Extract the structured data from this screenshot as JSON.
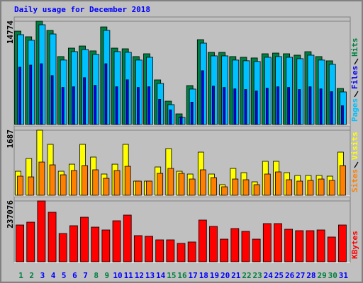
{
  "chart_data": [
    {
      "type": "bar",
      "title": "Daily usage for December 2018",
      "series": [
        {
          "name": "Hits",
          "color": "#008040",
          "values": [
            13360,
            12550,
            14774,
            13460,
            9720,
            10930,
            11230,
            10530,
            13960,
            10930,
            10830,
            9720,
            10120,
            6380,
            3340,
            1520,
            5570,
            12140,
            10320,
            10320,
            9720,
            9620,
            9520,
            10120,
            10220,
            10120,
            9920,
            10420,
            9720,
            9110,
            5160
          ]
        },
        {
          "name": "Files",
          "color": "#0000ff",
          "values": [
            8200,
            8500,
            8700,
            7000,
            5300,
            5400,
            6700,
            5600,
            8700,
            5400,
            6400,
            5300,
            5400,
            3600,
            2100,
            1100,
            3200,
            7700,
            5500,
            5300,
            5100,
            5000,
            4800,
            5200,
            5400,
            5300,
            5000,
            5400,
            5100,
            4700,
            2700
          ]
        },
        {
          "name": "Pages",
          "color": "#00c0ff",
          "values": [
            12850,
            12050,
            14270,
            12950,
            9220,
            10430,
            10730,
            10030,
            13460,
            10430,
            10330,
            9220,
            9620,
            5880,
            2840,
            1020,
            5070,
            11640,
            9820,
            9820,
            9220,
            9120,
            9020,
            9620,
            9720,
            9620,
            9420,
            9920,
            9220,
            8610,
            4660
          ]
        }
      ],
      "ylim": [
        0,
        14774
      ],
      "yticks": [
        14774
      ],
      "grid": true
    },
    {
      "type": "bar",
      "series": [
        {
          "name": "Visits",
          "color": "#ffff00",
          "values": [
            623,
            953,
            1687,
            1320,
            623,
            806,
            1320,
            990,
            550,
            806,
            1320,
            367,
            367,
            733,
            1210,
            623,
            550,
            1118,
            550,
            275,
            696,
            586,
            348,
            880,
            880,
            586,
            513,
            513,
            513,
            495,
            1118
          ]
        },
        {
          "name": "Sites",
          "color": "#ff8000",
          "values": [
            495,
            476,
            861,
            788,
            531,
            641,
            770,
            660,
            440,
            641,
            751,
            367,
            367,
            568,
            696,
            568,
            421,
            660,
            458,
            220,
            421,
            403,
            275,
            550,
            605,
            403,
            367,
            385,
            421,
            385,
            770
          ]
        }
      ],
      "ylim": [
        0,
        1687
      ],
      "yticks": [
        1687
      ],
      "grid": true
    },
    {
      "type": "bar",
      "categories": [
        "1",
        "2",
        "3",
        "4",
        "5",
        "6",
        "7",
        "8",
        "9",
        "10",
        "11",
        "12",
        "13",
        "14",
        "15",
        "16",
        "17",
        "18",
        "19",
        "20",
        "21",
        "22",
        "23",
        "24",
        "25",
        "26",
        "27",
        "28",
        "29",
        "30",
        "31"
      ],
      "category_colors": [
        "#008040",
        "#008040",
        "#0000ff",
        "#0000ff",
        "#0000ff",
        "#0000ff",
        "#0000ff",
        "#008040",
        "#008040",
        "#0000ff",
        "#0000ff",
        "#0000ff",
        "#0000ff",
        "#0000ff",
        "#008040",
        "#008040",
        "#0000ff",
        "#0000ff",
        "#0000ff",
        "#0000ff",
        "#0000ff",
        "#008040",
        "#008040",
        "#0000ff",
        "#0000ff",
        "#0000ff",
        "#0000ff",
        "#0000ff",
        "#008040",
        "#008040",
        "#0000ff"
      ],
      "series": [
        {
          "name": "KBytes",
          "color": "#ff0000",
          "values": [
            143360,
            154390,
            237076,
            192990,
            110280,
            140600,
            173690,
            135090,
            124060,
            159900,
            181960,
            102010,
            99250,
            85470,
            85470,
            71680,
            77200,
            162660,
            137850,
            88220,
            129580,
            118550,
            88220,
            148880,
            148880,
            126820,
            121310,
            121310,
            124060,
            96500,
            143360
          ]
        }
      ],
      "ylim": [
        0,
        237076
      ],
      "yticks": [
        237076
      ],
      "grid": true
    }
  ]
}
